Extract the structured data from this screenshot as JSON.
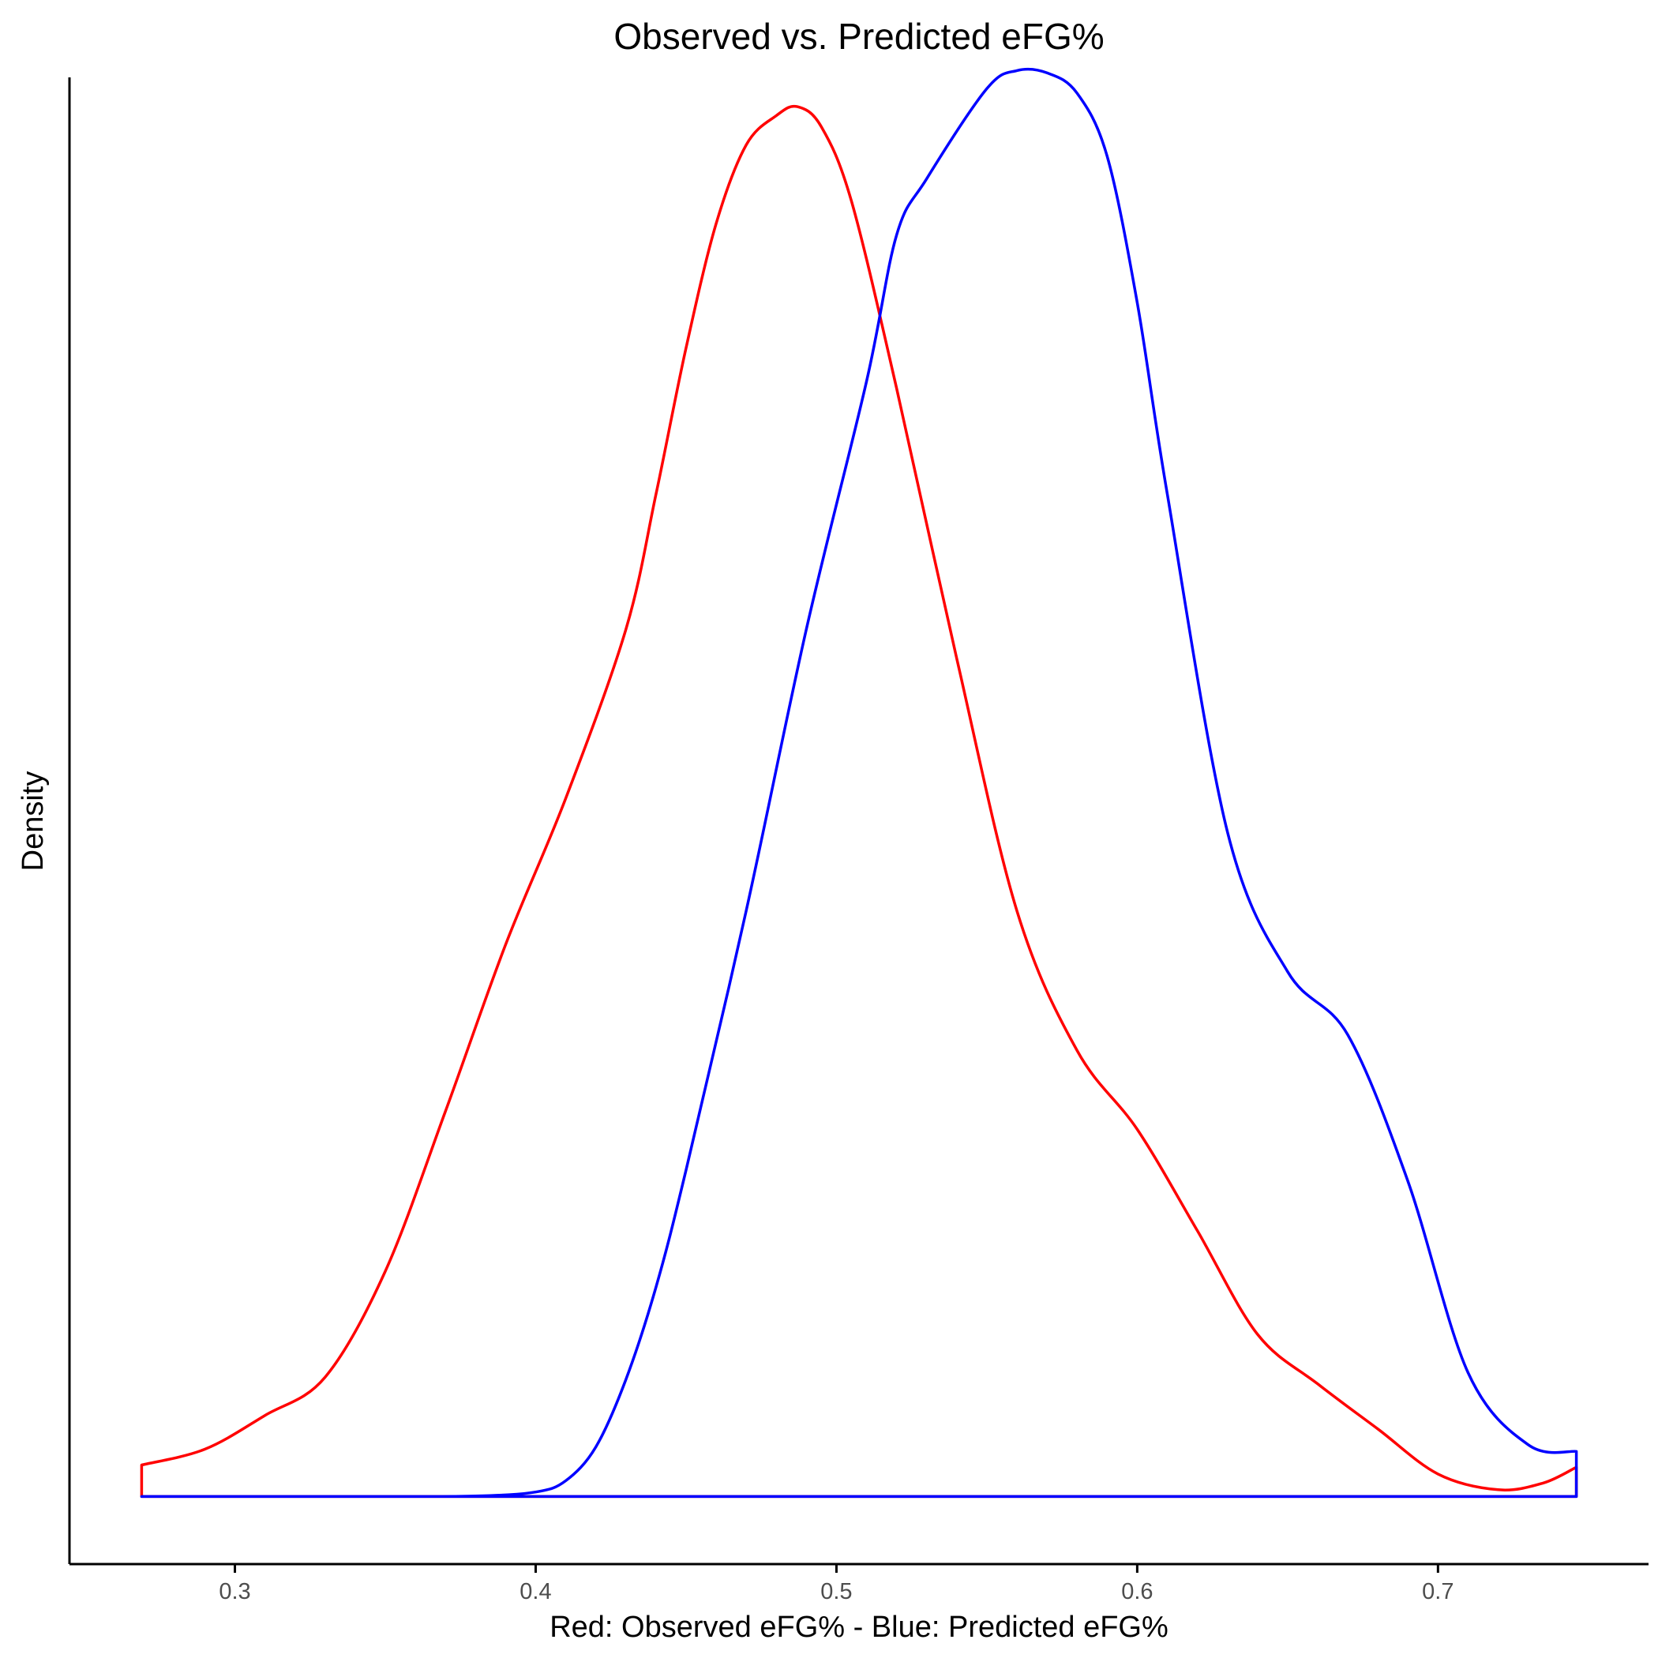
{
  "chart_data": {
    "type": "area",
    "title": "Observed vs. Predicted eFG%",
    "xlabel": "Red: Observed eFG% - Blue: Predicted eFG%",
    "ylabel": "Density",
    "xlim": [
      0.245,
      0.77
    ],
    "ylim": [
      -0.3,
      6.3
    ],
    "x_ticks": [
      0.3,
      0.4,
      0.5,
      0.6,
      0.7
    ],
    "x_tick_labels": [
      "0.3",
      "0.4",
      "0.5",
      "0.6",
      "0.7"
    ],
    "y_ticks_shown": false,
    "grid": false,
    "legend": "none",
    "series": [
      {
        "color": "#ff0000",
        "x": [
          0.269,
          0.29,
          0.31,
          0.33,
          0.35,
          0.37,
          0.39,
          0.41,
          0.43,
          0.44,
          0.45,
          0.46,
          0.47,
          0.48,
          0.487,
          0.495,
          0.505,
          0.52,
          0.54,
          0.56,
          0.58,
          0.6,
          0.62,
          0.64,
          0.66,
          0.68,
          0.7,
          0.72,
          0.735,
          0.746
        ],
        "y": [
          0.14,
          0.21,
          0.36,
          0.53,
          1.0,
          1.71,
          2.45,
          3.1,
          3.85,
          4.45,
          5.1,
          5.65,
          6.0,
          6.13,
          6.17,
          6.08,
          5.75,
          4.92,
          3.72,
          2.6,
          1.98,
          1.63,
          1.18,
          0.72,
          0.5,
          0.3,
          0.1,
          0.03,
          0.06,
          0.13
        ]
      },
      {
        "color": "#0000ff",
        "x": [
          0.269,
          0.3,
          0.35,
          0.38,
          0.4,
          0.41,
          0.42,
          0.43,
          0.44,
          0.45,
          0.47,
          0.49,
          0.51,
          0.52,
          0.53,
          0.55,
          0.56,
          0.57,
          0.58,
          0.59,
          0.6,
          0.61,
          0.63,
          0.65,
          0.67,
          0.69,
          0.71,
          0.73,
          0.746
        ],
        "y": [
          0.0,
          0.0,
          0.0,
          0.002,
          0.02,
          0.07,
          0.22,
          0.52,
          0.93,
          1.45,
          2.6,
          3.85,
          4.95,
          5.6,
          5.85,
          6.25,
          6.33,
          6.32,
          6.23,
          5.95,
          5.3,
          4.45,
          2.95,
          2.33,
          2.05,
          1.4,
          0.55,
          0.23,
          0.2
        ]
      }
    ]
  }
}
